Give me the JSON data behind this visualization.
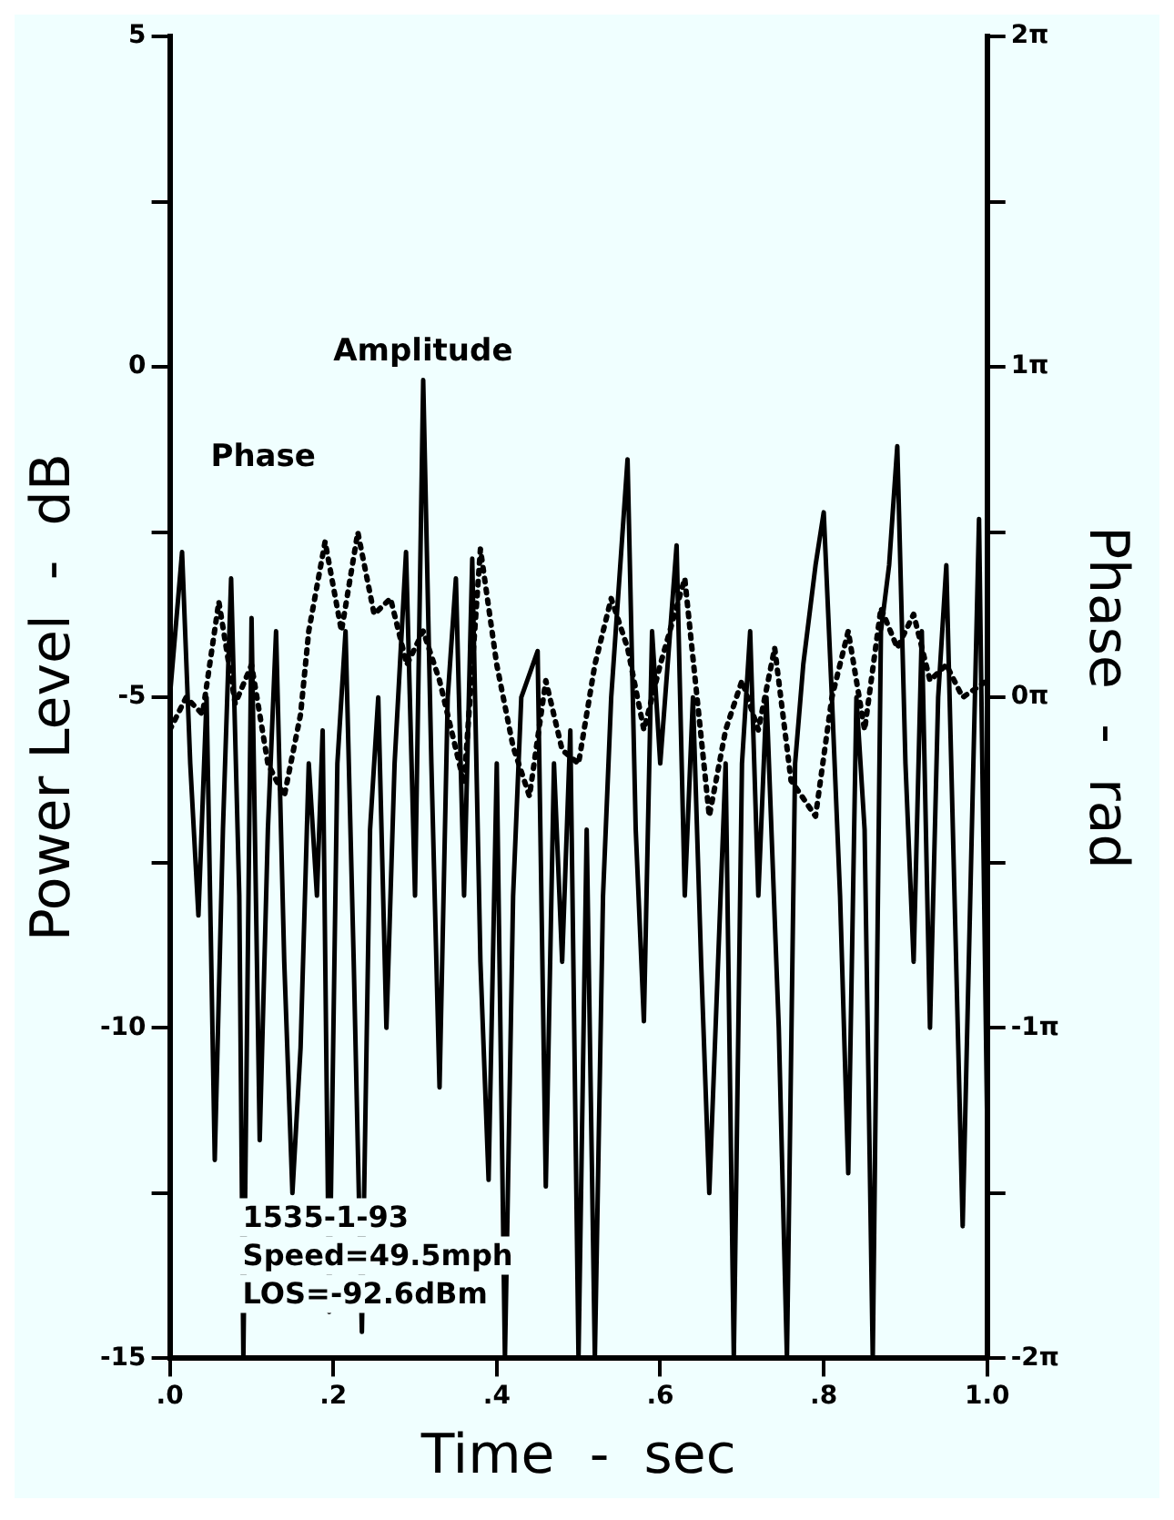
{
  "chart_data": {
    "type": "line",
    "xlabel": "Time  -  sec",
    "ylabel": "Power Level  -  dB",
    "y2label": "Phase  -  rad",
    "xlim": [
      0,
      1
    ],
    "xticks": [
      {
        "value": 0,
        "label": ".0"
      },
      {
        "value": 0.2,
        "label": ".2"
      },
      {
        "value": 0.4,
        "label": ".4"
      },
      {
        "value": 0.6,
        "label": ".6"
      },
      {
        "value": 0.8,
        "label": ".8"
      },
      {
        "value": 1,
        "label": "1.0"
      }
    ],
    "ylim": [
      -15,
      5
    ],
    "yticks": [
      -15,
      {
        "value": -12.5,
        "label": null
      },
      -10,
      {
        "value": -7.5,
        "label": null
      },
      -5,
      {
        "value": -2.5,
        "label": null
      },
      0,
      {
        "value": 2.5,
        "label": null
      },
      5
    ],
    "y2lim": [
      -6.283,
      6.283
    ],
    "y2ticks": [
      {
        "value": -6.283,
        "label": "-2π"
      },
      {
        "value": -4.712,
        "label": null
      },
      {
        "value": -3.142,
        "label": "-1π"
      },
      {
        "value": -1.571,
        "label": null
      },
      {
        "value": 0,
        "label": "0π"
      },
      {
        "value": 1.571,
        "label": null
      },
      {
        "value": 3.142,
        "label": "1π"
      },
      {
        "value": 4.712,
        "label": null
      },
      {
        "value": 6.283,
        "label": "2π"
      }
    ],
    "marker": "none",
    "annotations": [
      "1535-1-93",
      "Speed=49.5mph",
      "LOS=-92.6dBm"
    ],
    "series": [
      {
        "name": "Amplitude",
        "color": "#000000",
        "line_style": "solid",
        "axis": "y",
        "x": [
          0,
          0.015,
          0.025,
          0.035,
          0.045,
          0.055,
          0.065,
          0.075,
          0.085,
          0.09,
          0.1,
          0.11,
          0.12,
          0.13,
          0.14,
          0.15,
          0.16,
          0.17,
          0.18,
          0.187,
          0.195,
          0.205,
          0.215,
          0.225,
          0.235,
          0.245,
          0.255,
          0.265,
          0.275,
          0.289,
          0.3,
          0.31,
          0.32,
          0.33,
          0.34,
          0.35,
          0.36,
          0.37,
          0.38,
          0.39,
          0.4,
          0.41,
          0.42,
          0.43,
          0.45,
          0.46,
          0.47,
          0.48,
          0.49,
          0.5,
          0.51,
          0.52,
          0.53,
          0.54,
          0.56,
          0.57,
          0.58,
          0.59,
          0.6,
          0.62,
          0.63,
          0.64,
          0.65,
          0.66,
          0.68,
          0.69,
          0.7,
          0.71,
          0.72,
          0.73,
          0.745,
          0.755,
          0.765,
          0.775,
          0.79,
          0.8,
          0.81,
          0.82,
          0.83,
          0.84,
          0.85,
          0.86,
          0.87,
          0.88,
          0.89,
          0.9,
          0.91,
          0.92,
          0.93,
          0.94,
          0.95,
          0.96,
          0.97,
          0.99,
          1
        ],
        "values": [
          -5,
          -2.8,
          -6,
          -8.3,
          -5,
          -12,
          -7,
          -3.2,
          -8,
          -15,
          -3.8,
          -11.7,
          -7,
          -4,
          -9,
          -12.5,
          -10.3,
          -6,
          -8,
          -5.5,
          -14.3,
          -6,
          -4,
          -9,
          -14.6,
          -7,
          -5,
          -10,
          -6,
          -2.8,
          -8,
          -0.2,
          -6,
          -10.9,
          -5,
          -3.2,
          -8,
          -2.9,
          -9,
          -12.3,
          -6,
          -15,
          -8,
          -5,
          -4.3,
          -12.4,
          -6,
          -9,
          -5.5,
          -15,
          -7,
          -15,
          -8,
          -5,
          -1.4,
          -7,
          -9.9,
          -4,
          -6,
          -2.7,
          -8,
          -5,
          -9,
          -12.5,
          -6,
          -15,
          -6,
          -4,
          -8,
          -5,
          -10,
          -15,
          -6,
          -4.5,
          -3,
          -2.2,
          -5,
          -8,
          -12.2,
          -5,
          -7,
          -15,
          -4,
          -3,
          -1.2,
          -6,
          -9,
          -4,
          -10,
          -5,
          -3,
          -8,
          -13,
          -2.3,
          -11.5
        ]
      },
      {
        "name": "Phase",
        "color": "#000000",
        "line_style": "dotted",
        "axis": "y2",
        "x": [
          0,
          0.02,
          0.04,
          0.06,
          0.08,
          0.1,
          0.12,
          0.14,
          0.16,
          0.17,
          0.19,
          0.21,
          0.23,
          0.25,
          0.27,
          0.29,
          0.31,
          0.33,
          0.36,
          0.38,
          0.4,
          0.42,
          0.44,
          0.46,
          0.48,
          0.5,
          0.52,
          0.54,
          0.56,
          0.58,
          0.6,
          0.63,
          0.66,
          0.68,
          0.7,
          0.72,
          0.74,
          0.76,
          0.79,
          0.81,
          0.83,
          0.85,
          0.87,
          0.89,
          0.91,
          0.93,
          0.95,
          0.97,
          1
        ],
        "values": [
          -0.31,
          0,
          -0.16,
          0.91,
          -0.06,
          0.31,
          -0.63,
          -0.94,
          -0.16,
          0.63,
          1.48,
          0.63,
          1.57,
          0.79,
          0.94,
          0.31,
          0.63,
          0.16,
          -0.82,
          1.41,
          0.31,
          -0.47,
          -0.94,
          0.16,
          -0.5,
          -0.63,
          0.31,
          0.94,
          0.47,
          -0.31,
          0.31,
          1.13,
          -1.13,
          -0.31,
          0.16,
          -0.31,
          0.47,
          -0.79,
          -1.13,
          0,
          0.63,
          -0.31,
          0.85,
          0.47,
          0.79,
          0.16,
          0.31,
          0,
          0.16
        ]
      }
    ]
  }
}
